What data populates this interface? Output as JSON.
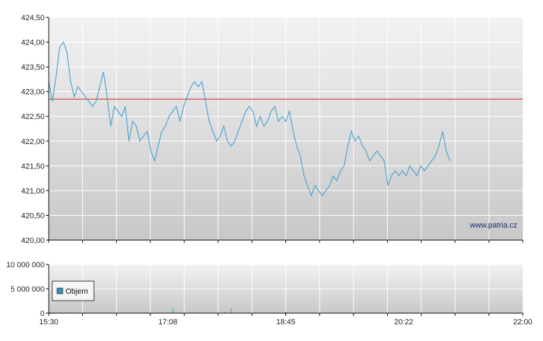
{
  "watermark": "www.patria.cz",
  "colors": {
    "price_line": "#4aa3cf",
    "reference_line": "#cc2222",
    "volume_bar": "#4aa3cf",
    "legend_swatch": "#3a8fc8",
    "axis": "#000000",
    "grid": "#ffffff",
    "plot_bg_top": "#f2f2f2",
    "plot_bg_bottom": "#c8c8c8"
  },
  "chart_data": [
    {
      "type": "line",
      "title": "",
      "xlabel": "",
      "ylabel": "",
      "ylim": [
        420.0,
        424.5
      ],
      "y_ticks": [
        "420,00",
        "420,50",
        "421,00",
        "421,50",
        "422,00",
        "422,50",
        "423,00",
        "423,50",
        "424,00",
        "424,50"
      ],
      "y_tick_values": [
        420.0,
        420.5,
        421.0,
        421.5,
        422.0,
        422.5,
        423.0,
        423.5,
        424.0,
        424.5
      ],
      "reference_line": 422.85,
      "grid": true,
      "x_range": [
        "15:30",
        "22:00"
      ],
      "series": [
        {
          "points": [
            [
              "15:30",
              423.2
            ],
            [
              "15:33",
              422.8
            ],
            [
              "15:36",
              423.3
            ],
            [
              "15:39",
              423.9
            ],
            [
              "15:42",
              424.0
            ],
            [
              "15:45",
              423.8
            ],
            [
              "15:48",
              423.2
            ],
            [
              "15:51",
              422.9
            ],
            [
              "15:54",
              423.1
            ],
            [
              "15:57",
              423.0
            ],
            [
              "16:00",
              422.9
            ],
            [
              "16:03",
              422.8
            ],
            [
              "16:06",
              422.7
            ],
            [
              "16:09",
              422.8
            ],
            [
              "16:12",
              423.1
            ],
            [
              "16:15",
              423.4
            ],
            [
              "16:18",
              422.9
            ],
            [
              "16:21",
              422.3
            ],
            [
              "16:24",
              422.7
            ],
            [
              "16:27",
              422.6
            ],
            [
              "16:30",
              422.5
            ],
            [
              "16:33",
              422.7
            ],
            [
              "16:36",
              422.0
            ],
            [
              "16:39",
              422.4
            ],
            [
              "16:42",
              422.3
            ],
            [
              "16:45",
              422.0
            ],
            [
              "16:48",
              422.1
            ],
            [
              "16:51",
              422.2
            ],
            [
              "16:54",
              421.8
            ],
            [
              "16:57",
              421.6
            ],
            [
              "17:00",
              421.9
            ],
            [
              "17:03",
              422.2
            ],
            [
              "17:06",
              422.3
            ],
            [
              "17:09",
              422.5
            ],
            [
              "17:12",
              422.6
            ],
            [
              "17:15",
              422.7
            ],
            [
              "17:18",
              422.4
            ],
            [
              "17:21",
              422.7
            ],
            [
              "17:24",
              422.9
            ],
            [
              "17:27",
              423.1
            ],
            [
              "17:30",
              423.2
            ],
            [
              "17:33",
              423.1
            ],
            [
              "17:36",
              423.2
            ],
            [
              "17:39",
              422.8
            ],
            [
              "17:42",
              422.4
            ],
            [
              "17:45",
              422.2
            ],
            [
              "17:48",
              422.0
            ],
            [
              "17:51",
              422.1
            ],
            [
              "17:54",
              422.3
            ],
            [
              "17:57",
              422.0
            ],
            [
              "18:00",
              421.9
            ],
            [
              "18:03",
              422.0
            ],
            [
              "18:06",
              422.2
            ],
            [
              "18:09",
              422.4
            ],
            [
              "18:12",
              422.6
            ],
            [
              "18:15",
              422.7
            ],
            [
              "18:18",
              422.6
            ],
            [
              "18:21",
              422.3
            ],
            [
              "18:24",
              422.5
            ],
            [
              "18:27",
              422.3
            ],
            [
              "18:30",
              422.4
            ],
            [
              "18:33",
              422.6
            ],
            [
              "18:36",
              422.7
            ],
            [
              "18:39",
              422.4
            ],
            [
              "18:42",
              422.5
            ],
            [
              "18:45",
              422.4
            ],
            [
              "18:48",
              422.6
            ],
            [
              "18:51",
              422.2
            ],
            [
              "18:54",
              421.9
            ],
            [
              "18:57",
              421.7
            ],
            [
              "19:00",
              421.3
            ],
            [
              "19:03",
              421.1
            ],
            [
              "19:06",
              420.9
            ],
            [
              "19:09",
              421.1
            ],
            [
              "19:12",
              421.0
            ],
            [
              "19:15",
              420.9
            ],
            [
              "19:18",
              421.0
            ],
            [
              "19:21",
              421.1
            ],
            [
              "19:24",
              421.3
            ],
            [
              "19:27",
              421.2
            ],
            [
              "19:30",
              421.4
            ],
            [
              "19:33",
              421.5
            ],
            [
              "19:36",
              421.9
            ],
            [
              "19:39",
              422.2
            ],
            [
              "19:42",
              422.0
            ],
            [
              "19:45",
              422.1
            ],
            [
              "19:48",
              421.9
            ],
            [
              "19:51",
              421.8
            ],
            [
              "19:54",
              421.6
            ],
            [
              "19:57",
              421.7
            ],
            [
              "20:00",
              421.8
            ],
            [
              "20:03",
              421.7
            ],
            [
              "20:06",
              421.6
            ],
            [
              "20:09",
              421.1
            ],
            [
              "20:12",
              421.3
            ],
            [
              "20:15",
              421.4
            ],
            [
              "20:18",
              421.3
            ],
            [
              "20:21",
              421.4
            ],
            [
              "20:24",
              421.3
            ],
            [
              "20:27",
              421.5
            ],
            [
              "20:30",
              421.4
            ],
            [
              "20:33",
              421.3
            ],
            [
              "20:36",
              421.5
            ],
            [
              "20:39",
              421.4
            ],
            [
              "20:42",
              421.5
            ],
            [
              "20:45",
              421.6
            ],
            [
              "20:48",
              421.7
            ],
            [
              "20:51",
              421.9
            ],
            [
              "20:54",
              422.2
            ],
            [
              "20:57",
              421.8
            ],
            [
              "21:00",
              421.6
            ]
          ]
        }
      ]
    },
    {
      "type": "bar",
      "title": "",
      "ylim": [
        0,
        10000000
      ],
      "y_ticks": [
        "0",
        "5 000 000",
        "10 000 000"
      ],
      "y_tick_values": [
        0,
        5000000,
        10000000
      ],
      "x_ticks": [
        "15:30",
        "17:08",
        "18:45",
        "20:22",
        "22:00"
      ],
      "legend": {
        "label": "Objem",
        "placement": "top-left"
      },
      "grid": true,
      "volume_series": [
        [
          "15:31",
          310000
        ],
        [
          "15:45",
          180000
        ],
        [
          "16:00",
          150000
        ],
        [
          "16:20",
          120000
        ],
        [
          "16:40",
          90000
        ],
        [
          "17:08",
          160000
        ],
        [
          "17:12",
          900000
        ],
        [
          "17:30",
          220000
        ],
        [
          "17:55",
          260000
        ],
        [
          "18:00",
          1000000
        ],
        [
          "18:20",
          180000
        ],
        [
          "18:45",
          300000
        ],
        [
          "19:00",
          140000
        ],
        [
          "19:20",
          110000
        ],
        [
          "19:40",
          95000
        ],
        [
          "20:00",
          80000
        ],
        [
          "20:22",
          150000
        ],
        [
          "20:40",
          60000
        ],
        [
          "21:00",
          70000
        ],
        [
          "21:20",
          50000
        ],
        [
          "21:40",
          45000
        ],
        [
          "22:00",
          60000
        ]
      ]
    }
  ]
}
